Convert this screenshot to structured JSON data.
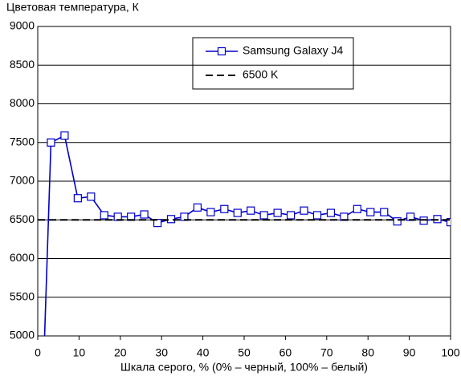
{
  "chart_data": {
    "type": "line",
    "title": "Цветовая температура, К",
    "xlabel": "Шкала серого, % (0% – черный, 100% – белый)",
    "xlim": [
      0,
      100
    ],
    "xticks": [
      0,
      10,
      20,
      30,
      40,
      50,
      60,
      70,
      80,
      90,
      100
    ],
    "ylim": [
      5000,
      9000
    ],
    "yticks": [
      5000,
      5500,
      6000,
      6500,
      7000,
      7500,
      8000,
      8500,
      9000
    ],
    "grid": true,
    "legend": "top-center",
    "series": [
      {
        "name": "Samsung Galaxy J4",
        "color": "#0000cc",
        "marker": "square",
        "dash": false,
        "x": [
          1.6,
          3.2,
          6.5,
          9.7,
          12.9,
          16.1,
          19.4,
          22.6,
          25.8,
          29.0,
          32.3,
          35.5,
          38.7,
          41.9,
          45.2,
          48.4,
          51.6,
          54.8,
          58.1,
          61.3,
          64.5,
          67.7,
          71.0,
          74.2,
          77.4,
          80.6,
          83.9,
          87.1,
          90.3,
          93.5,
          96.8,
          100
        ],
        "values": [
          4900,
          7500,
          7590,
          6780,
          6800,
          6560,
          6540,
          6540,
          6570,
          6460,
          6510,
          6540,
          6660,
          6600,
          6640,
          6590,
          6620,
          6560,
          6590,
          6560,
          6620,
          6560,
          6590,
          6540,
          6640,
          6600,
          6600,
          6480,
          6540,
          6490,
          6510,
          6470
        ]
      },
      {
        "name": "6500 K",
        "color": "#000000",
        "marker": "none",
        "dash": true,
        "x": [
          0,
          100
        ],
        "values": [
          6500,
          6500
        ]
      }
    ]
  }
}
